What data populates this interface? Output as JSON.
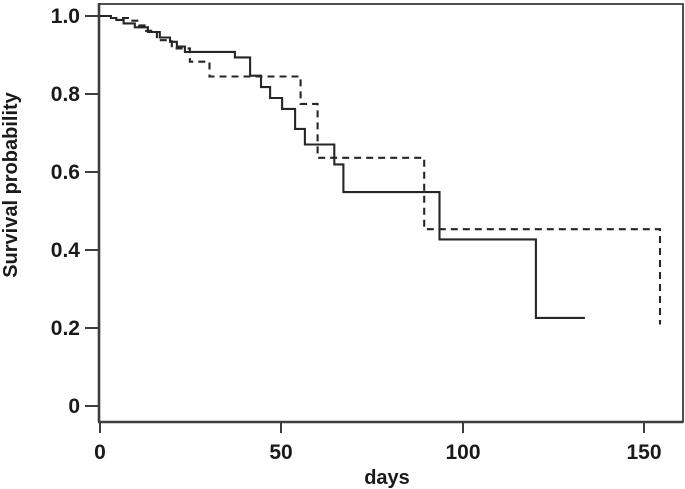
{
  "figure": {
    "background_color": "#ffffff",
    "curve_color": "#262626",
    "axis_color": "#3d3d3d"
  },
  "chart_data": {
    "type": "line",
    "subtype": "kaplan-meier-step-survival",
    "title": "",
    "xlabel": "days",
    "ylabel": "Survival probability",
    "xlim": [
      0,
      160.8
    ],
    "ylim": [
      0,
      1.0
    ],
    "grid": false,
    "legend_position": "none",
    "x_ticks": [
      0,
      50,
      100,
      150
    ],
    "x_tick_labels": [
      "0",
      "50",
      "100",
      "150"
    ],
    "y_ticks": [
      1.0,
      0.8,
      0.6,
      0.4,
      0.2,
      0
    ],
    "y_tick_labels": [
      "1.0",
      "0.8",
      "0.6",
      "0.4",
      "0.2",
      "0"
    ],
    "series": [
      {
        "name": "solid-group",
        "line_style": "solid",
        "steps_day_survival": [
          [
            0,
            1.0
          ],
          [
            3.0,
            0.995
          ],
          [
            4.5,
            0.99
          ],
          [
            6.5,
            0.981
          ],
          [
            9.6,
            0.971
          ],
          [
            13.2,
            0.959
          ],
          [
            16.5,
            0.945
          ],
          [
            19.3,
            0.934
          ],
          [
            21.2,
            0.922
          ],
          [
            23.4,
            0.908
          ],
          [
            37.2,
            0.894
          ],
          [
            41.4,
            0.847
          ],
          [
            44.4,
            0.818
          ],
          [
            46.9,
            0.79
          ],
          [
            50.2,
            0.762
          ],
          [
            53.8,
            0.711
          ],
          [
            56.5,
            0.671
          ],
          [
            64.6,
            0.62
          ],
          [
            67.1,
            0.549
          ],
          [
            93.6,
            0.428
          ],
          [
            120.2,
            0.227
          ]
        ],
        "end_day": 133.7
      },
      {
        "name": "dashed-group",
        "line_style": "dashed",
        "steps_day_survival": [
          [
            0,
            1.0
          ],
          [
            2.5,
            0.995
          ],
          [
            8.3,
            0.988
          ],
          [
            10.8,
            0.976
          ],
          [
            12.7,
            0.962
          ],
          [
            15.7,
            0.938
          ],
          [
            19.8,
            0.917
          ],
          [
            24.8,
            0.883
          ],
          [
            30.2,
            0.845
          ],
          [
            55.3,
            0.775
          ],
          [
            60.0,
            0.637
          ],
          [
            89.4,
            0.454
          ],
          [
            154.4,
            0.21
          ]
        ],
        "end_day": 154.4
      }
    ]
  }
}
